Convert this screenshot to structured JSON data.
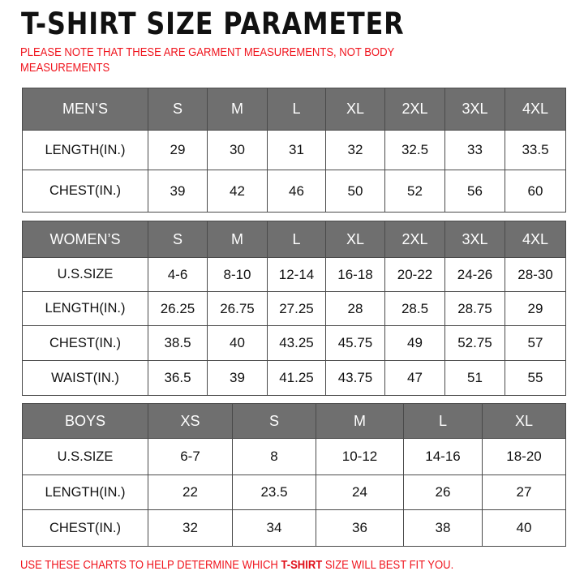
{
  "title": "T-SHIRT  SIZE  PARAMETER",
  "note": "PLEASE NOTE THAT THESE ARE GARMENT MEASUREMENTS, NOT BODY MEASUREMENTS",
  "footer": {
    "before": "USE THESE CHARTS TO HELP DETERMINE WHICH ",
    "highlight": "T-SHIRT",
    "after": " SIZE WILL BEST FIT YOU."
  },
  "colors": {
    "header_fill": "#6f6f6f",
    "note_red": "#f0151e",
    "border": "#4a4a4a"
  },
  "tables": {
    "men": {
      "headers": [
        "MEN’S",
        "S",
        "M",
        "L",
        "XL",
        "2XL",
        "3XL",
        "4XL"
      ],
      "rows": [
        [
          "LENGTH(IN.)",
          "29",
          "30",
          "31",
          "32",
          "32.5",
          "33",
          "33.5"
        ],
        [
          "CHEST(IN.)",
          "39",
          "42",
          "46",
          "50",
          "52",
          "56",
          "60"
        ]
      ]
    },
    "women": {
      "headers": [
        "WOMEN’S",
        "S",
        "M",
        "L",
        "XL",
        "2XL",
        "3XL",
        "4XL"
      ],
      "rows": [
        [
          "U.S.SIZE",
          "4-6",
          "8-10",
          "12-14",
          "16-18",
          "20-22",
          "24-26",
          "28-30"
        ],
        [
          "LENGTH(IN.)",
          "26.25",
          "26.75",
          "27.25",
          "28",
          "28.5",
          "28.75",
          "29"
        ],
        [
          "CHEST(IN.)",
          "38.5",
          "40",
          "43.25",
          "45.75",
          "49",
          "52.75",
          "57"
        ],
        [
          "WAIST(IN.)",
          "36.5",
          "39",
          "41.25",
          "43.75",
          "47",
          "51",
          "55"
        ]
      ]
    },
    "boys": {
      "headers": [
        "BOYS",
        "XS",
        "S",
        "M",
        "L",
        "XL"
      ],
      "rows": [
        [
          "U.S.SIZE",
          "6-7",
          "8",
          "10-12",
          "14-16",
          "18-20"
        ],
        [
          "LENGTH(IN.)",
          "22",
          "23.5",
          "24",
          "26",
          "27"
        ],
        [
          "CHEST(IN.)",
          "32",
          "34",
          "36",
          "38",
          "40"
        ]
      ]
    }
  }
}
